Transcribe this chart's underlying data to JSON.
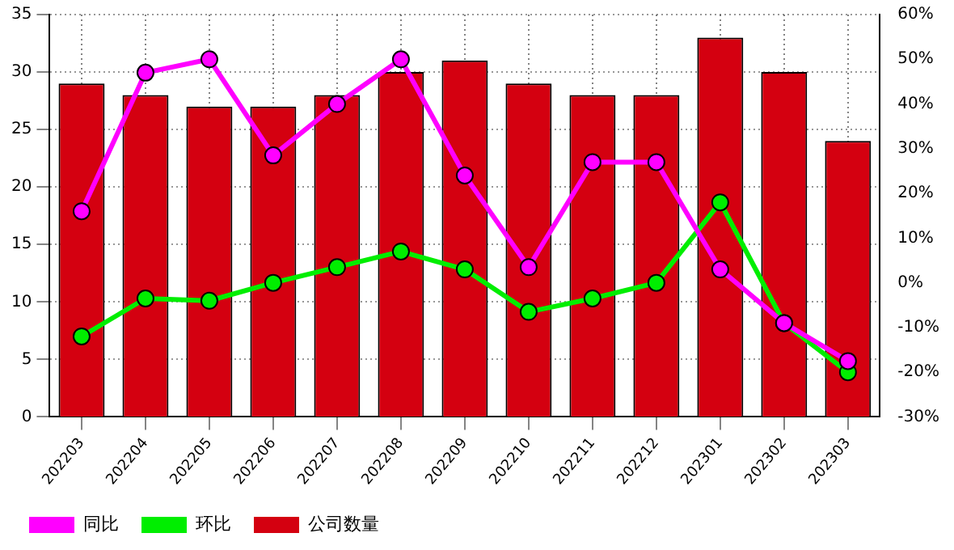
{
  "chart_data": {
    "type": "bar",
    "categories": [
      "202203",
      "202204",
      "202205",
      "202206",
      "202207",
      "202208",
      "202209",
      "202210",
      "202211",
      "202212",
      "202301",
      "202302",
      "202303"
    ],
    "series": [
      {
        "name": "同比",
        "type": "line",
        "axis": "y2",
        "color": "#ff00ff",
        "values": [
          16,
          47,
          50,
          28.5,
          40,
          50,
          24,
          3.5,
          27,
          27,
          3,
          -9,
          -17.5
        ]
      },
      {
        "name": "环比",
        "type": "line",
        "axis": "y2",
        "color": "#00ee00",
        "values": [
          -12,
          -3.5,
          -4,
          0,
          3.5,
          7,
          3,
          -6.5,
          -3.5,
          0,
          18,
          -9,
          -20
        ]
      },
      {
        "name": "公司数量",
        "color": "#d40010",
        "values": [
          29,
          28,
          27,
          27,
          28,
          30,
          31,
          29,
          28,
          28,
          33,
          30,
          24
        ]
      }
    ],
    "ylim": [
      0,
      35
    ],
    "yticks": [
      0,
      5,
      10,
      15,
      20,
      25,
      30,
      35
    ],
    "y2lim": [
      -30,
      60
    ],
    "y2ticks": [
      {
        "value": -30,
        "label": "-30%"
      },
      {
        "value": -20,
        "label": "-20%"
      },
      {
        "value": -10,
        "label": "-10%"
      },
      {
        "value": 0,
        "label": "0%"
      },
      {
        "value": 10,
        "label": "10%"
      },
      {
        "value": 20,
        "label": "20%"
      },
      {
        "value": 30,
        "label": "30%"
      },
      {
        "value": 40,
        "label": "40%"
      },
      {
        "value": 50,
        "label": "50%"
      },
      {
        "value": 60,
        "label": "60%"
      }
    ],
    "grid": true,
    "legend": "bottom",
    "marker": "circle",
    "line_style": "solid"
  }
}
